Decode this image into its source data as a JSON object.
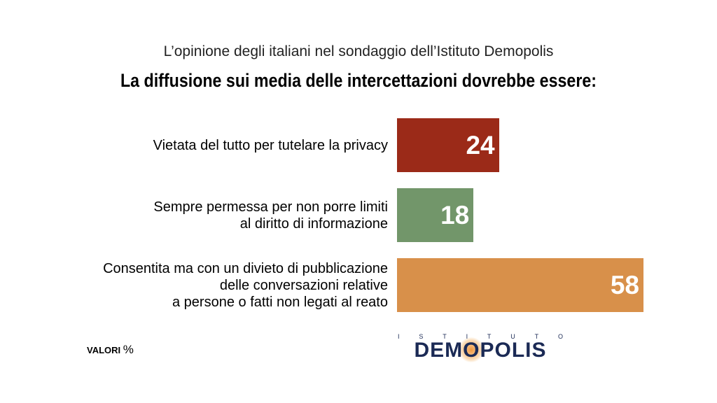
{
  "header": {
    "subtitle": "L’opinione degli italiani nel sondaggio dell’Istituto Demopolis",
    "title": "La diffusione sui media delle intercettazioni dovrebbe essere:"
  },
  "chart_data": {
    "type": "bar",
    "orientation": "horizontal",
    "title": "La diffusione sui media delle intercettazioni dovrebbe essere:",
    "subtitle": "L’opinione degli italiani nel sondaggio dell’Istituto Demopolis",
    "categories": [
      [
        "Vietata del tutto per tutelare la privacy"
      ],
      [
        "Sempre permessa per non porre limiti",
        "al diritto di informazione"
      ],
      [
        "Consentita ma con un divieto di pubblicazione",
        "delle conversazioni relative",
        "a persone o fatti non legati al reato"
      ]
    ],
    "values": [
      24,
      18,
      58
    ],
    "colors": [
      "#9b2a18",
      "#72966a",
      "#d8904a"
    ],
    "xlim": [
      0,
      58
    ],
    "unit": "%"
  },
  "footer": {
    "note_label": "VALORI",
    "note_unit": "%",
    "logo_top": [
      "I",
      "S",
      "T",
      "I",
      "T",
      "U",
      "T",
      "O"
    ],
    "logo_main_a": "DEM",
    "logo_main_o": "O",
    "logo_main_b": "POLIS"
  }
}
